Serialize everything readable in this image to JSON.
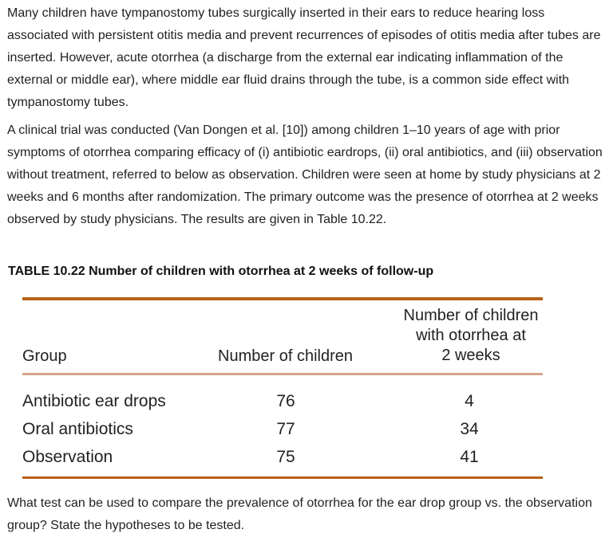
{
  "intro_paragraph": "Many children have tympanostomy tubes surgically inserted in their ears to reduce hearing loss associated with persistent otitis media and prevent recurrences of episodes of otitis media after tubes are inserted. However, acute otorrhea (a discharge from the external ear indicating inflammation of the external or middle ear), where middle ear fluid drains through the tube, is a common side effect with tympanostomy tubes.",
  "trial_paragraph": "A clinical trial was conducted (Van Dongen et al. [10]) among children 1–10 years of age with prior symptoms of otorrhea comparing efficacy of (i) antibiotic eardrops, (ii) oral antibiotics, and (iii) observation without treatment, referred to below as observation. Children were seen at home by study physicians at 2 weeks and 6 months after randomization. The primary outcome was the presence of otorrhea at 2 weeks observed by study physicians. The results are given in Table 10.22.",
  "table": {
    "caption": "TABLE 10.22 Number of children with otorrhea at 2 weeks of follow-up",
    "headers": {
      "group": "Group",
      "number_of_children": "Number of children",
      "otorrhea_line1": "Number of children",
      "otorrhea_line2": "with otorrhea at",
      "otorrhea_line3": "2 weeks"
    },
    "rows": [
      {
        "group": "Antibiotic ear drops",
        "n": "76",
        "otorrhea": "4"
      },
      {
        "group": "Oral antibiotics",
        "n": "77",
        "otorrhea": "34"
      },
      {
        "group": "Observation",
        "n": "75",
        "otorrhea": "41"
      }
    ],
    "rule_color": "#b8621b"
  },
  "question": "What test can be used to compare the prevalence of otorrhea for the ear drop group vs. the observation group? State the hypotheses to be tested."
}
